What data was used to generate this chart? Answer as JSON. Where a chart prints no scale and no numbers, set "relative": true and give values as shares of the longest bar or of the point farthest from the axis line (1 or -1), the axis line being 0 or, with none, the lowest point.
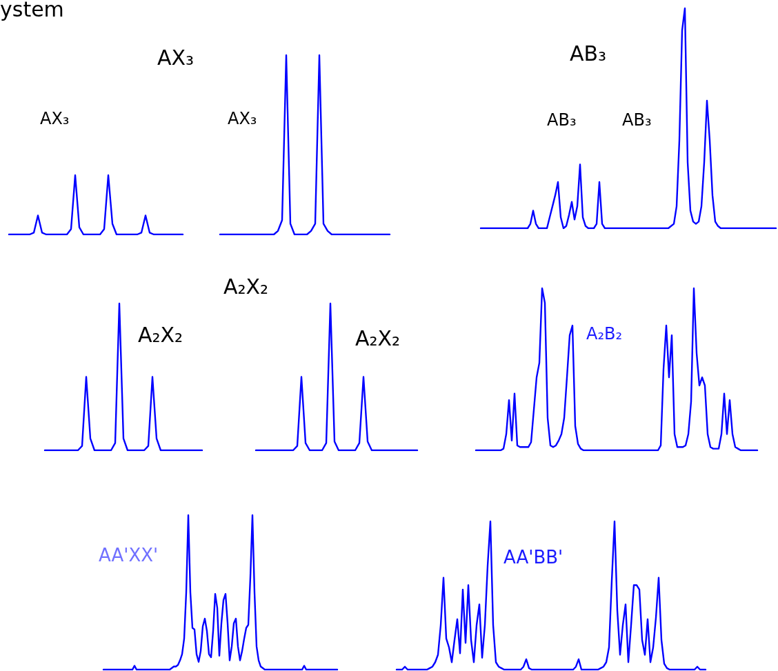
{
  "chart_data": [
    {
      "type": "line",
      "title": "AX₃",
      "annotations": [
        "ystem",
        "AX₃"
      ],
      "relative": true,
      "color": "#0000ff",
      "categories": [
        null,
        null,
        null,
        null,
        null,
        null,
        null,
        null,
        null,
        null,
        null,
        null,
        null,
        null,
        null,
        null,
        null,
        null,
        null,
        null,
        null,
        null,
        null,
        null,
        null,
        null,
        null,
        null,
        null,
        null,
        null,
        null,
        null,
        null,
        null,
        null,
        null,
        null,
        null,
        null,
        null,
        null,
        null
      ],
      "values": [
        0,
        0,
        0,
        0,
        0,
        0,
        0.03,
        0.32,
        0.03,
        0,
        0,
        0,
        0,
        0,
        0,
        0.09,
        1,
        0.12,
        0,
        0,
        0,
        0,
        0,
        0.09,
        1,
        0.18,
        0,
        0,
        0,
        0,
        0,
        0,
        0.03,
        0.32,
        0.03,
        0,
        0,
        0,
        0,
        0,
        0,
        0,
        0
      ]
    },
    {
      "type": "line",
      "annotations": [
        "AX₃"
      ],
      "relative": true,
      "color": "#0000ff",
      "categories": [
        null,
        null,
        null,
        null,
        null,
        null,
        null,
        null,
        null,
        null,
        null,
        null,
        null,
        null,
        null,
        null,
        null,
        null,
        null,
        null,
        null,
        null,
        null,
        null,
        null,
        null,
        null,
        null,
        null,
        null,
        null,
        null,
        null,
        null,
        null,
        null,
        null,
        null,
        null,
        null,
        null,
        null
      ],
      "values": [
        0,
        0,
        0,
        0,
        0,
        0,
        0,
        0,
        0,
        0,
        0,
        0,
        0,
        0,
        0.02,
        0.08,
        1,
        0.06,
        0,
        0,
        0,
        0,
        0.02,
        0.06,
        1,
        0.06,
        0.02,
        0,
        0,
        0,
        0,
        0,
        0,
        0,
        0,
        0,
        0,
        0,
        0,
        0,
        0,
        0
      ]
    },
    {
      "type": "line",
      "title": "AB₃",
      "annotations": [
        "AB₃",
        "AB₃"
      ],
      "relative": true,
      "color": "#0000ff",
      "categories": [
        null,
        null,
        null,
        null,
        null,
        null,
        null,
        null,
        null,
        null,
        null,
        null,
        null,
        null,
        null,
        null,
        null,
        null,
        null,
        null,
        null,
        null,
        null,
        null,
        null,
        null,
        null,
        null,
        null,
        null,
        null,
        null,
        null,
        null,
        null,
        null,
        null,
        null,
        null,
        null,
        null,
        null,
        null,
        null,
        null,
        null,
        null,
        null,
        null,
        null,
        null,
        null,
        null,
        null,
        null,
        null,
        null,
        null,
        null,
        null,
        null,
        null,
        null,
        null,
        null,
        null,
        null,
        null,
        null,
        null,
        null,
        null,
        null,
        null,
        null,
        null,
        null,
        null,
        null,
        null,
        null,
        null,
        null,
        null,
        null,
        null,
        null,
        null,
        null,
        null,
        null,
        null,
        null,
        null,
        null,
        null,
        null,
        null,
        null,
        null,
        null,
        null,
        null,
        null,
        null,
        null,
        null,
        null
      ],
      "values": [
        0,
        0,
        0,
        0,
        0,
        0,
        0,
        0,
        0,
        0,
        0,
        0,
        0,
        0,
        0,
        0,
        0,
        0,
        0.02,
        0.08,
        0.02,
        0,
        0,
        0,
        0,
        0.05,
        0.1,
        0.15,
        0.21,
        0.05,
        0,
        0.01,
        0.06,
        0.12,
        0.04,
        0.1,
        0.29,
        0.05,
        0.01,
        0,
        0,
        0,
        0.02,
        0.21,
        0.02,
        0,
        0,
        0,
        0,
        0,
        0,
        0,
        0,
        0,
        0,
        0,
        0,
        0,
        0,
        0,
        0,
        0,
        0,
        0,
        0,
        0,
        0,
        0,
        0,
        0.01,
        0.02,
        0.1,
        0.4,
        0.9,
        1,
        0.3,
        0.08,
        0.03,
        0.02,
        0.03,
        0.1,
        0.3,
        0.58,
        0.4,
        0.15,
        0.03,
        0.01,
        0,
        0,
        0,
        0,
        0,
        0,
        0,
        0,
        0,
        0,
        0,
        0,
        0,
        0,
        0,
        0,
        0,
        0,
        0,
        0,
        0
      ]
    },
    {
      "type": "line",
      "annotations": [
        "A₂X₂"
      ],
      "relative": true,
      "color": "#0000ff",
      "categories": [
        null,
        null,
        null,
        null,
        null,
        null,
        null,
        null,
        null,
        null,
        null,
        null,
        null,
        null,
        null,
        null,
        null,
        null,
        null,
        null,
        null,
        null,
        null,
        null,
        null,
        null,
        null,
        null,
        null,
        null,
        null,
        null,
        null,
        null,
        null,
        null,
        null,
        null,
        null
      ],
      "values": [
        0,
        0,
        0,
        0,
        0,
        0,
        0,
        0,
        0,
        0.03,
        0.5,
        0.08,
        0,
        0,
        0,
        0,
        0,
        0.05,
        1,
        0.08,
        0,
        0,
        0,
        0,
        0,
        0.03,
        0.5,
        0.08,
        0,
        0,
        0,
        0,
        0,
        0,
        0,
        0,
        0,
        0,
        0
      ]
    },
    {
      "type": "line",
      "title": "A₂X₂",
      "annotations": [
        "A₂X₂"
      ],
      "relative": true,
      "color": "#0000ff",
      "categories": [
        null,
        null,
        null,
        null,
        null,
        null,
        null,
        null,
        null,
        null,
        null,
        null,
        null,
        null,
        null,
        null,
        null,
        null,
        null,
        null,
        null,
        null,
        null,
        null,
        null,
        null,
        null,
        null,
        null,
        null,
        null,
        null,
        null,
        null,
        null,
        null,
        null,
        null,
        null,
        null
      ],
      "values": [
        0,
        0,
        0,
        0,
        0,
        0,
        0,
        0,
        0,
        0,
        0.03,
        0.5,
        0.05,
        0,
        0,
        0,
        0,
        0.05,
        1,
        0.06,
        0,
        0,
        0,
        0,
        0,
        0.05,
        0.5,
        0.06,
        0,
        0,
        0,
        0,
        0,
        0,
        0,
        0,
        0,
        0,
        0,
        0
      ]
    },
    {
      "type": "line",
      "annotations": [
        "A₂B₂"
      ],
      "relative": true,
      "color": "#0000ff",
      "categories": [
        null,
        null,
        null,
        null,
        null,
        null,
        null,
        null,
        null,
        null,
        null,
        null,
        null,
        null,
        null,
        null,
        null,
        null,
        null,
        null,
        null,
        null,
        null,
        null,
        null,
        null,
        null,
        null,
        null,
        null,
        null,
        null,
        null,
        null,
        null,
        null,
        null,
        null,
        null,
        null,
        null,
        null,
        null,
        null,
        null,
        null,
        null,
        null,
        null,
        null,
        null,
        null,
        null,
        null,
        null,
        null,
        null,
        null,
        null,
        null,
        null,
        null,
        null,
        null,
        null,
        null,
        null,
        null,
        null,
        null,
        null,
        null,
        null,
        null,
        null,
        null,
        null,
        null,
        null,
        null,
        null,
        null,
        null,
        null,
        null,
        null,
        null,
        null,
        null,
        null,
        null,
        null,
        null,
        null,
        null,
        null,
        null,
        null,
        null,
        null,
        null,
        null,
        null
      ],
      "values": [
        0,
        0,
        0,
        0,
        0,
        0,
        0,
        0,
        0,
        0,
        0.01,
        0.1,
        0.31,
        0.06,
        0.35,
        0.03,
        0.02,
        0.02,
        0.02,
        0.02,
        0.05,
        0.25,
        0.45,
        0.54,
        1,
        0.91,
        0.2,
        0.03,
        0.02,
        0.03,
        0.06,
        0.1,
        0.2,
        0.45,
        0.71,
        0.77,
        0.15,
        0.04,
        0.01,
        0,
        0,
        0,
        0,
        0,
        0,
        0,
        0,
        0,
        0,
        0,
        0,
        0,
        0,
        0,
        0,
        0,
        0,
        0,
        0,
        0,
        0,
        0,
        0,
        0,
        0,
        0,
        0,
        0.03,
        0.5,
        0.77,
        0.45,
        0.71,
        0.1,
        0.02,
        0.02,
        0.02,
        0.03,
        0.1,
        0.3,
        1,
        0.6,
        0.4,
        0.45,
        0.4,
        0.1,
        0.02,
        0.01,
        0.01,
        0.01,
        0.1,
        0.35,
        0.1,
        0.31,
        0.1,
        0.02,
        0.01,
        0,
        0,
        0,
        0,
        0,
        0,
        0
      ]
    },
    {
      "type": "line",
      "annotations": [
        "AA'XX'"
      ],
      "relative": true,
      "color": "#0000ff",
      "categories": [
        null,
        null,
        null,
        null,
        null,
        null,
        null,
        null,
        null,
        null,
        null,
        null,
        null,
        null,
        null,
        null,
        null,
        null,
        null,
        null,
        null,
        null,
        null,
        null,
        null,
        null,
        null,
        null,
        null,
        null,
        null,
        null,
        null,
        null,
        null,
        null,
        null,
        null,
        null,
        null,
        null,
        null,
        null,
        null,
        null,
        null,
        null,
        null,
        null,
        null,
        null,
        null,
        null,
        null,
        null,
        null,
        null,
        null,
        null,
        null,
        null,
        null,
        null,
        null,
        null,
        null,
        null,
        null,
        null,
        null,
        null,
        null,
        null,
        null,
        null,
        null,
        null,
        null,
        null,
        null,
        null,
        null,
        null,
        null,
        null,
        null,
        null,
        null,
        null,
        null,
        null,
        null,
        null,
        null,
        null,
        null,
        null,
        null,
        null,
        null,
        null,
        null,
        null,
        null,
        null,
        null,
        null,
        null,
        null,
        null,
        null,
        null,
        null,
        null
      ],
      "values": [
        0,
        0,
        0,
        0,
        0,
        0,
        0,
        0,
        0,
        0,
        0,
        0,
        0,
        0,
        0,
        0.025,
        0,
        0,
        0,
        0,
        0,
        0,
        0,
        0,
        0,
        0,
        0,
        0,
        0,
        0,
        0,
        0,
        0,
        0.01,
        0.02,
        0.02,
        0.03,
        0.06,
        0.1,
        0.2,
        0.5,
        1,
        0.5,
        0.27,
        0.26,
        0.1,
        0.05,
        0.12,
        0.28,
        0.33,
        0.25,
        0.1,
        0.08,
        0.25,
        0.49,
        0.4,
        0.09,
        0.3,
        0.45,
        0.49,
        0.3,
        0.06,
        0.15,
        0.3,
        0.33,
        0.15,
        0.06,
        0.12,
        0.2,
        0.27,
        0.29,
        0.6,
        1,
        0.5,
        0.15,
        0.06,
        0.02,
        0.01,
        0,
        0,
        0,
        0,
        0,
        0,
        0,
        0,
        0,
        0,
        0,
        0,
        0,
        0,
        0,
        0,
        0,
        0,
        0,
        0.025,
        0,
        0,
        0,
        0,
        0,
        0,
        0,
        0,
        0,
        0,
        0,
        0,
        0,
        0,
        0,
        0
      ]
    },
    {
      "type": "line",
      "annotations": [
        "AA'BB'"
      ],
      "relative": true,
      "color": "#0000ff",
      "categories": [
        null,
        null,
        null,
        null,
        null,
        null,
        null,
        null,
        null,
        null,
        null,
        null,
        null,
        null,
        null,
        null,
        null,
        null,
        null,
        null,
        null,
        null,
        null,
        null,
        null,
        null,
        null,
        null,
        null,
        null,
        null,
        null,
        null,
        null,
        null,
        null,
        null,
        null,
        null,
        null,
        null,
        null,
        null,
        null,
        null,
        null,
        null,
        null,
        null,
        null,
        null,
        null,
        null,
        null,
        null,
        null,
        null,
        null,
        null,
        null,
        null,
        null,
        null,
        null,
        null,
        null,
        null,
        null,
        null,
        null,
        null,
        null,
        null,
        null,
        null,
        null,
        null,
        null,
        null,
        null,
        null,
        null,
        null,
        null,
        null,
        null,
        null,
        null,
        null,
        null,
        null,
        null,
        null,
        null,
        null,
        null,
        null,
        null,
        null,
        null,
        null,
        null,
        null,
        null,
        null,
        null,
        null,
        null,
        null,
        null,
        null,
        null,
        null
      ],
      "values": [
        0,
        0,
        0,
        0.02,
        0,
        0,
        0,
        0,
        0,
        0,
        0,
        0,
        0.01,
        0.02,
        0.05,
        0.1,
        0.3,
        0.62,
        0.21,
        0.15,
        0.05,
        0.2,
        0.34,
        0.11,
        0.54,
        0.18,
        0.57,
        0.2,
        0.05,
        0.3,
        0.44,
        0.08,
        0.3,
        0.7,
        1,
        0.3,
        0.05,
        0.02,
        0.01,
        0,
        0,
        0,
        0,
        0,
        0,
        0,
        0.02,
        0.07,
        0.01,
        0,
        0,
        0,
        0,
        0,
        0,
        0,
        0,
        0,
        0,
        0,
        0,
        0,
        0,
        0,
        0,
        0.02,
        0.07,
        0,
        0,
        0,
        0,
        0,
        0,
        0,
        0.01,
        0.02,
        0.05,
        0.15,
        0.6,
        1,
        0.4,
        0.1,
        0.3,
        0.44,
        0.05,
        0.3,
        0.57,
        0.57,
        0.54,
        0.2,
        0.1,
        0.34,
        0.05,
        0.15,
        0.35,
        0.62,
        0.2,
        0.04,
        0.01,
        0,
        0,
        0,
        0,
        0,
        0,
        0,
        0,
        0,
        0,
        0.02,
        0,
        0,
        0
      ]
    }
  ]
}
